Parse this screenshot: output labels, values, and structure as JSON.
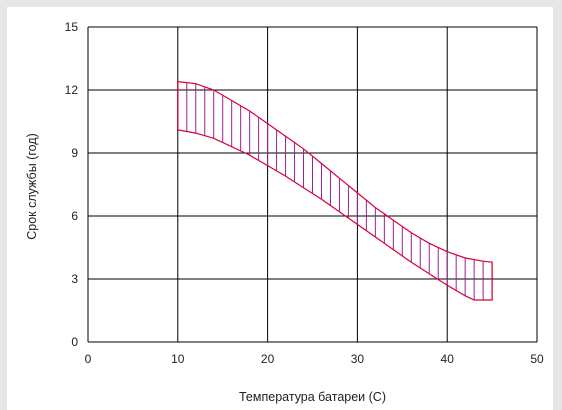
{
  "chart_data": {
    "type": "area",
    "title": "",
    "xlabel": "Температура батареи (С)",
    "ylabel": "Срок службы (год)",
    "xlim": [
      0,
      50
    ],
    "ylim": [
      0,
      15
    ],
    "x_ticks": [
      0,
      10,
      20,
      30,
      40,
      50
    ],
    "y_ticks": [
      0,
      3,
      6,
      9,
      12,
      15
    ],
    "x_tick_labels": [
      "0",
      "10",
      "20",
      "30",
      "40",
      "50"
    ],
    "y_tick_labels": [
      "0",
      "3",
      "6",
      "9",
      "12",
      "15"
    ],
    "grid": true,
    "band": {
      "upper": [
        [
          10,
          12.4
        ],
        [
          12,
          12.3
        ],
        [
          14,
          12.0
        ],
        [
          16,
          11.5
        ],
        [
          18,
          11.0
        ],
        [
          20,
          10.4
        ],
        [
          22,
          9.8
        ],
        [
          24,
          9.2
        ],
        [
          26,
          8.5
        ],
        [
          28,
          7.8
        ],
        [
          30,
          7.1
        ],
        [
          32,
          6.4
        ],
        [
          34,
          5.8
        ],
        [
          36,
          5.2
        ],
        [
          38,
          4.7
        ],
        [
          40,
          4.3
        ],
        [
          42,
          4.0
        ],
        [
          44,
          3.85
        ],
        [
          45,
          3.8
        ]
      ],
      "lower": [
        [
          10,
          10.1
        ],
        [
          12,
          9.95
        ],
        [
          14,
          9.7
        ],
        [
          16,
          9.3
        ],
        [
          18,
          8.9
        ],
        [
          20,
          8.4
        ],
        [
          22,
          7.9
        ],
        [
          24,
          7.35
        ],
        [
          26,
          6.8
        ],
        [
          28,
          6.2
        ],
        [
          30,
          5.6
        ],
        [
          32,
          5.0
        ],
        [
          34,
          4.4
        ],
        [
          36,
          3.8
        ],
        [
          38,
          3.25
        ],
        [
          40,
          2.7
        ],
        [
          42,
          2.2
        ],
        [
          43,
          2.0
        ],
        [
          45,
          2.0
        ]
      ],
      "hatch_spacing_x": 1
    },
    "colors": {
      "band_outline": "#d8003a",
      "hatch": "#a0208c",
      "grid": "#000000",
      "panel_background": "#ffffff",
      "page_background": "#e6e6e6"
    }
  }
}
